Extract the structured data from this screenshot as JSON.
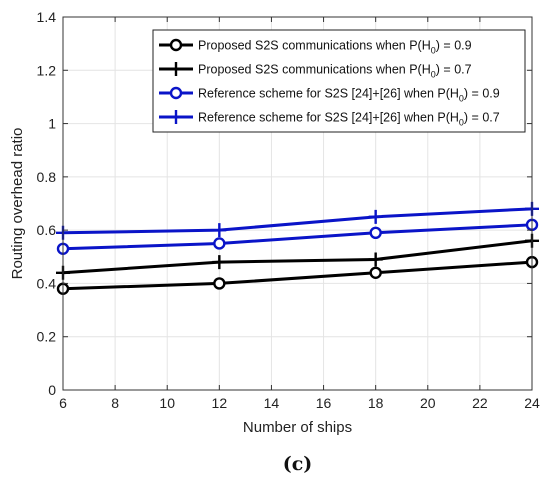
{
  "chart_data": {
    "type": "line",
    "xlabel": "Number of ships",
    "ylabel": "Routing overhead ratio",
    "xlim": [
      6,
      24
    ],
    "ylim": [
      0,
      1.4
    ],
    "xticks": [
      6,
      8,
      10,
      12,
      14,
      16,
      18,
      20,
      22,
      24
    ],
    "yticks": [
      0,
      0.2,
      0.4,
      0.6,
      0.8,
      1,
      1.2,
      1.4
    ],
    "xtick_labels": [
      "6",
      "8",
      "10",
      "12",
      "14",
      "16",
      "18",
      "20",
      "22",
      "24"
    ],
    "ytick_labels": [
      "0",
      "0.2",
      "0.4",
      "0.6",
      "0.8",
      "1",
      "1.2",
      "1.4"
    ],
    "grid": true,
    "legend_position": "top-right",
    "x": [
      6,
      12,
      18,
      24
    ],
    "series": [
      {
        "name_prefix": "Proposed S2S communications when P(H",
        "name_subscript": "0",
        "name_suffix": ") = 0.9",
        "color": "#000000",
        "marker": "circle",
        "values": [
          0.38,
          0.4,
          0.44,
          0.48
        ]
      },
      {
        "name_prefix": "Proposed S2S communications when P(H",
        "name_subscript": "0",
        "name_suffix": ") = 0.7",
        "color": "#000000",
        "marker": "plus",
        "values": [
          0.44,
          0.48,
          0.49,
          0.56
        ]
      },
      {
        "name_prefix": "Reference scheme for S2S [24]+[26] when P(H",
        "name_subscript": "0",
        "name_suffix": ") = 0.9",
        "color": "#0a14c8",
        "marker": "circle",
        "values": [
          0.53,
          0.55,
          0.59,
          0.62
        ]
      },
      {
        "name_prefix": "Reference scheme for S2S [24]+[26] when P(H",
        "name_subscript": "0",
        "name_suffix": ") = 0.7",
        "color": "#0a14c8",
        "marker": "plus",
        "values": [
          0.59,
          0.6,
          0.65,
          0.68
        ]
      }
    ]
  },
  "caption": "(c)"
}
